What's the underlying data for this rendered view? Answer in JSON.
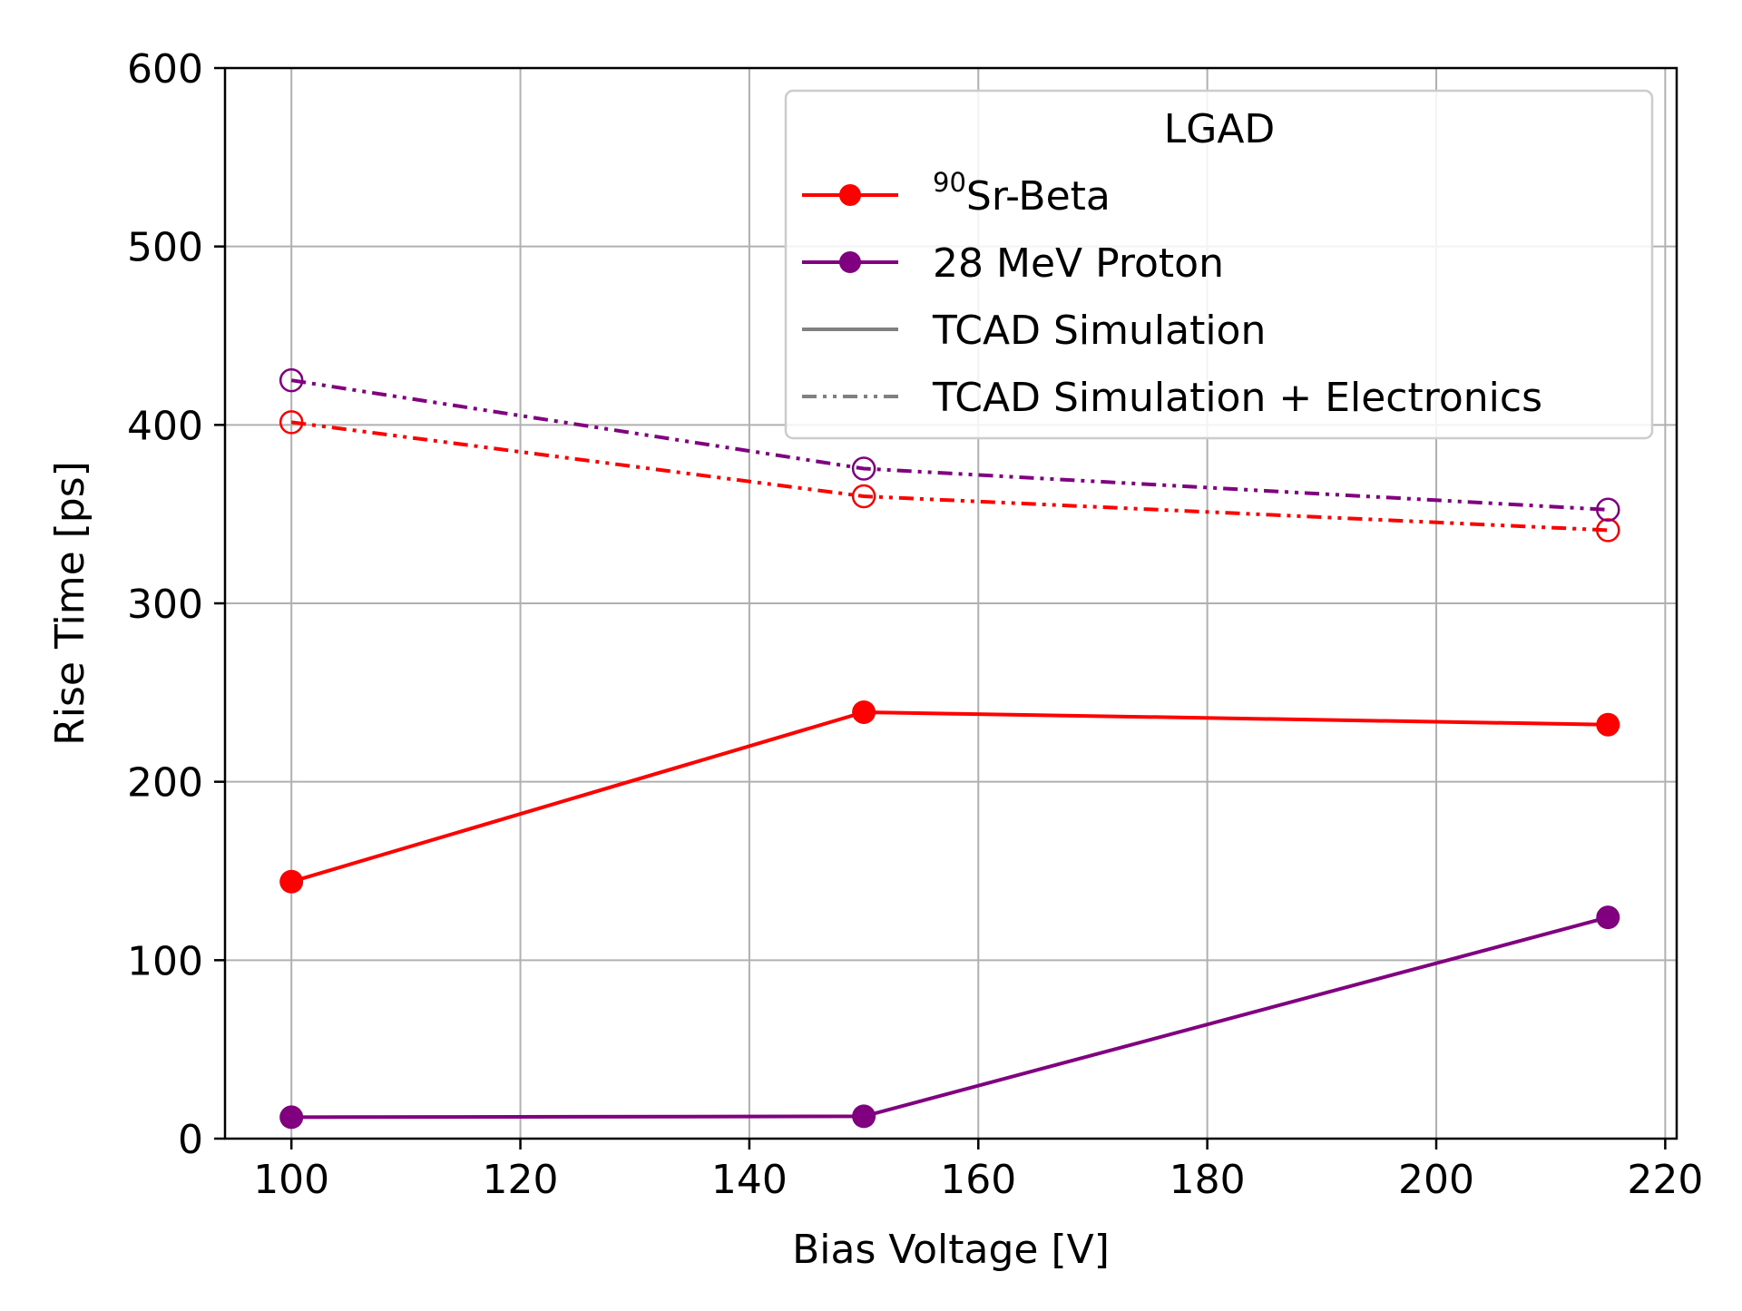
{
  "chart_data": {
    "type": "line",
    "title": "",
    "xlabel": "Bias Voltage [V]",
    "ylabel": "Rise Time [ps]",
    "xlim": [
      94.2,
      221.0
    ],
    "ylim": [
      0,
      600
    ],
    "xticks": [
      100,
      120,
      140,
      160,
      180,
      200,
      220
    ],
    "yticks": [
      0,
      100,
      200,
      300,
      400,
      500,
      600
    ],
    "xtick_labels": [
      "100",
      "120",
      "140",
      "160",
      "180",
      "200",
      "220"
    ],
    "ytick_labels": [
      "0",
      "100",
      "200",
      "300",
      "400",
      "500",
      "600"
    ],
    "grid": true,
    "x": [
      100,
      150,
      215
    ],
    "series": [
      {
        "name": "90Sr-Beta",
        "kind": "measurement",
        "color": "#ff0000",
        "values": [
          144,
          239,
          232
        ]
      },
      {
        "name": "28 MeV Proton",
        "kind": "measurement",
        "color": "#800080",
        "values": [
          12,
          12.5,
          124
        ]
      },
      {
        "name": "90Sr-Beta TCAD Simulation + Electronics",
        "kind": "simulation",
        "color": "#ff0000",
        "values": [
          401.5,
          360,
          341
        ]
      },
      {
        "name": "28 MeV Proton TCAD Simulation + Electronics",
        "kind": "simulation",
        "color": "#800080",
        "values": [
          425,
          375.5,
          352.5
        ]
      }
    ],
    "legend": {
      "title": "LGAD",
      "position": "upper right",
      "entries": [
        {
          "sup": "90",
          "text": "Sr-Beta",
          "color": "#ff0000",
          "style": "solid-marker"
        },
        {
          "sup": "",
          "text": "28 MeV Proton",
          "color": "#800080",
          "style": "solid-marker"
        },
        {
          "sup": "",
          "text": "TCAD Simulation",
          "color": "#808080",
          "style": "solid"
        },
        {
          "sup": "",
          "text": "TCAD Simulation + Electronics",
          "color": "#808080",
          "style": "dashdotdot"
        }
      ]
    }
  }
}
